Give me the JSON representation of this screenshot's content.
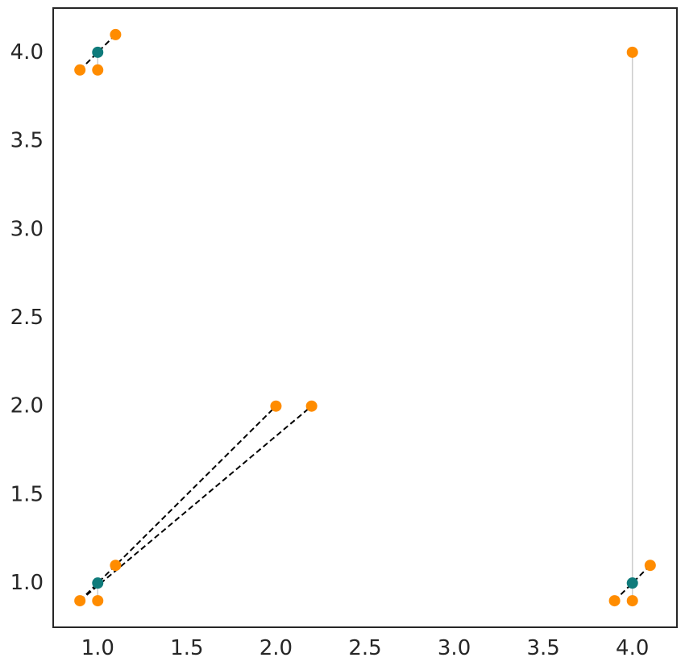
{
  "chart_data": {
    "type": "scatter",
    "title": "",
    "xlabel": "",
    "ylabel": "",
    "xlim": [
      0.75,
      4.25
    ],
    "ylim": [
      0.75,
      4.25
    ],
    "grid": false,
    "x_ticks": [
      1.0,
      1.5,
      2.0,
      2.5,
      3.0,
      3.5,
      4.0
    ],
    "y_ticks": [
      1.0,
      1.5,
      2.0,
      2.5,
      3.0,
      3.5,
      4.0
    ],
    "x_tick_labels": [
      "1.0",
      "1.5",
      "2.0",
      "2.5",
      "3.0",
      "3.5",
      "4.0"
    ],
    "y_tick_labels": [
      "1.0",
      "1.5",
      "2.0",
      "2.5",
      "3.0",
      "3.5",
      "4.0"
    ],
    "colors": {
      "center": "#0f7b7b",
      "point": "#ff8c00",
      "dashed": "#000000",
      "solid": "#cccccc",
      "axes": "#262626"
    },
    "centers": [
      {
        "x": 1.0,
        "y": 4.0
      },
      {
        "x": 1.0,
        "y": 1.0
      },
      {
        "x": 4.0,
        "y": 1.0
      }
    ],
    "points": [
      {
        "x": 0.9,
        "y": 3.9
      },
      {
        "x": 1.0,
        "y": 3.9
      },
      {
        "x": 1.1,
        "y": 4.1
      },
      {
        "x": 4.0,
        "y": 4.0
      },
      {
        "x": 2.0,
        "y": 2.0
      },
      {
        "x": 2.2,
        "y": 2.0
      },
      {
        "x": 0.9,
        "y": 0.9
      },
      {
        "x": 1.0,
        "y": 0.9
      },
      {
        "x": 1.1,
        "y": 1.1
      },
      {
        "x": 3.9,
        "y": 0.9
      },
      {
        "x": 4.0,
        "y": 0.9
      },
      {
        "x": 4.1,
        "y": 1.1
      }
    ],
    "dashed_lines": [
      {
        "x1": 0.9,
        "y1": 3.9,
        "x2": 1.1,
        "y2": 4.1
      },
      {
        "x1": 0.9,
        "y1": 0.9,
        "x2": 2.0,
        "y2": 2.0
      },
      {
        "x1": 0.9,
        "y1": 0.9,
        "x2": 2.2,
        "y2": 2.0
      },
      {
        "x1": 3.9,
        "y1": 0.9,
        "x2": 4.1,
        "y2": 1.1
      }
    ],
    "solid_lines": [
      {
        "x1": 4.0,
        "y1": 1.0,
        "x2": 4.0,
        "y2": 4.0
      },
      {
        "x1": 1.0,
        "y1": 3.9,
        "x2": 1.0,
        "y2": 4.0
      },
      {
        "x1": 1.0,
        "y1": 0.9,
        "x2": 1.0,
        "y2": 1.0
      },
      {
        "x1": 4.0,
        "y1": 0.9,
        "x2": 4.0,
        "y2": 1.0
      }
    ]
  }
}
